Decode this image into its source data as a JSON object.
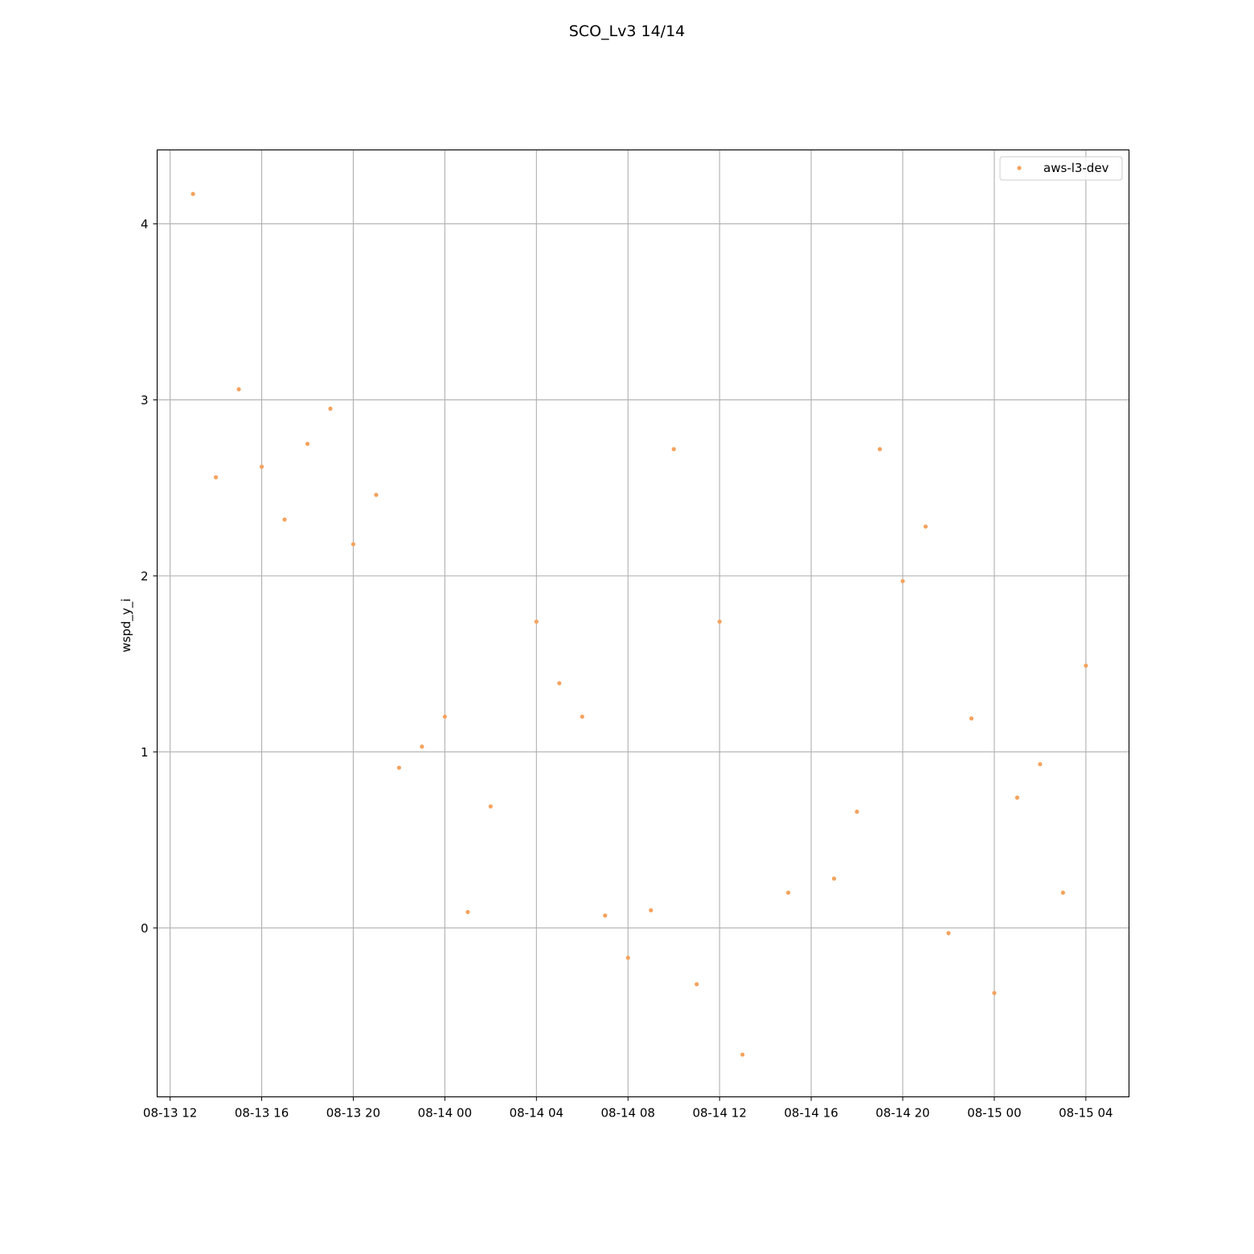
{
  "chart_data": {
    "type": "scatter",
    "title": "SCO_Lv3 14/14",
    "xlabel": "",
    "ylabel": "wspd_y_i",
    "x_axis": {
      "type": "datetime",
      "range": [
        "2024-08-13 11:26",
        "2024-08-15 05:53"
      ],
      "ticks": [
        {
          "value": "2024-08-13 12:00",
          "label": "08-13 12"
        },
        {
          "value": "2024-08-13 16:00",
          "label": "08-13 16"
        },
        {
          "value": "2024-08-13 20:00",
          "label": "08-13 20"
        },
        {
          "value": "2024-08-14 00:00",
          "label": "08-14 00"
        },
        {
          "value": "2024-08-14 04:00",
          "label": "08-14 04"
        },
        {
          "value": "2024-08-14 08:00",
          "label": "08-14 08"
        },
        {
          "value": "2024-08-14 12:00",
          "label": "08-14 12"
        },
        {
          "value": "2024-08-14 16:00",
          "label": "08-14 16"
        },
        {
          "value": "2024-08-14 20:00",
          "label": "08-14 20"
        },
        {
          "value": "2024-08-15 00:00",
          "label": "08-15 00"
        },
        {
          "value": "2024-08-15 04:00",
          "label": "08-15 04"
        }
      ]
    },
    "y_axis": {
      "range": [
        -0.96,
        4.42
      ],
      "ticks": [
        0,
        1,
        2,
        3,
        4
      ]
    },
    "grid": true,
    "legend": {
      "placement": "top-right"
    },
    "series": [
      {
        "name": "aws-l3-dev",
        "color": "#f5a25d",
        "marker": "dot",
        "points": [
          {
            "x": "2024-08-13 13:00",
            "y": 4.17
          },
          {
            "x": "2024-08-13 14:00",
            "y": 2.56
          },
          {
            "x": "2024-08-13 15:00",
            "y": 3.06
          },
          {
            "x": "2024-08-13 16:00",
            "y": 2.62
          },
          {
            "x": "2024-08-13 17:00",
            "y": 2.32
          },
          {
            "x": "2024-08-13 18:00",
            "y": 2.75
          },
          {
            "x": "2024-08-13 19:00",
            "y": 2.95
          },
          {
            "x": "2024-08-13 20:00",
            "y": 2.18
          },
          {
            "x": "2024-08-13 21:00",
            "y": 2.46
          },
          {
            "x": "2024-08-13 22:00",
            "y": 0.91
          },
          {
            "x": "2024-08-13 23:00",
            "y": 1.03
          },
          {
            "x": "2024-08-14 00:00",
            "y": 1.2
          },
          {
            "x": "2024-08-14 01:00",
            "y": 0.09
          },
          {
            "x": "2024-08-14 02:00",
            "y": 0.69
          },
          {
            "x": "2024-08-14 04:00",
            "y": 1.74
          },
          {
            "x": "2024-08-14 05:00",
            "y": 1.39
          },
          {
            "x": "2024-08-14 06:00",
            "y": 1.2
          },
          {
            "x": "2024-08-14 07:00",
            "y": 0.07
          },
          {
            "x": "2024-08-14 08:00",
            "y": -0.17
          },
          {
            "x": "2024-08-14 09:00",
            "y": 0.1
          },
          {
            "x": "2024-08-14 10:00",
            "y": 2.72
          },
          {
            "x": "2024-08-14 11:00",
            "y": -0.32
          },
          {
            "x": "2024-08-14 12:00",
            "y": 1.74
          },
          {
            "x": "2024-08-14 13:00",
            "y": -0.72
          },
          {
            "x": "2024-08-14 15:00",
            "y": 0.2
          },
          {
            "x": "2024-08-14 17:00",
            "y": 0.28
          },
          {
            "x": "2024-08-14 18:00",
            "y": 0.66
          },
          {
            "x": "2024-08-14 19:00",
            "y": 2.72
          },
          {
            "x": "2024-08-14 20:00",
            "y": 1.97
          },
          {
            "x": "2024-08-14 21:00",
            "y": 2.28
          },
          {
            "x": "2024-08-14 22:00",
            "y": -0.03
          },
          {
            "x": "2024-08-14 23:00",
            "y": 1.19
          },
          {
            "x": "2024-08-15 00:00",
            "y": -0.37
          },
          {
            "x": "2024-08-15 01:00",
            "y": 0.74
          },
          {
            "x": "2024-08-15 02:00",
            "y": 0.93
          },
          {
            "x": "2024-08-15 03:00",
            "y": 0.2
          },
          {
            "x": "2024-08-15 04:00",
            "y": 1.49
          }
        ]
      }
    ]
  }
}
